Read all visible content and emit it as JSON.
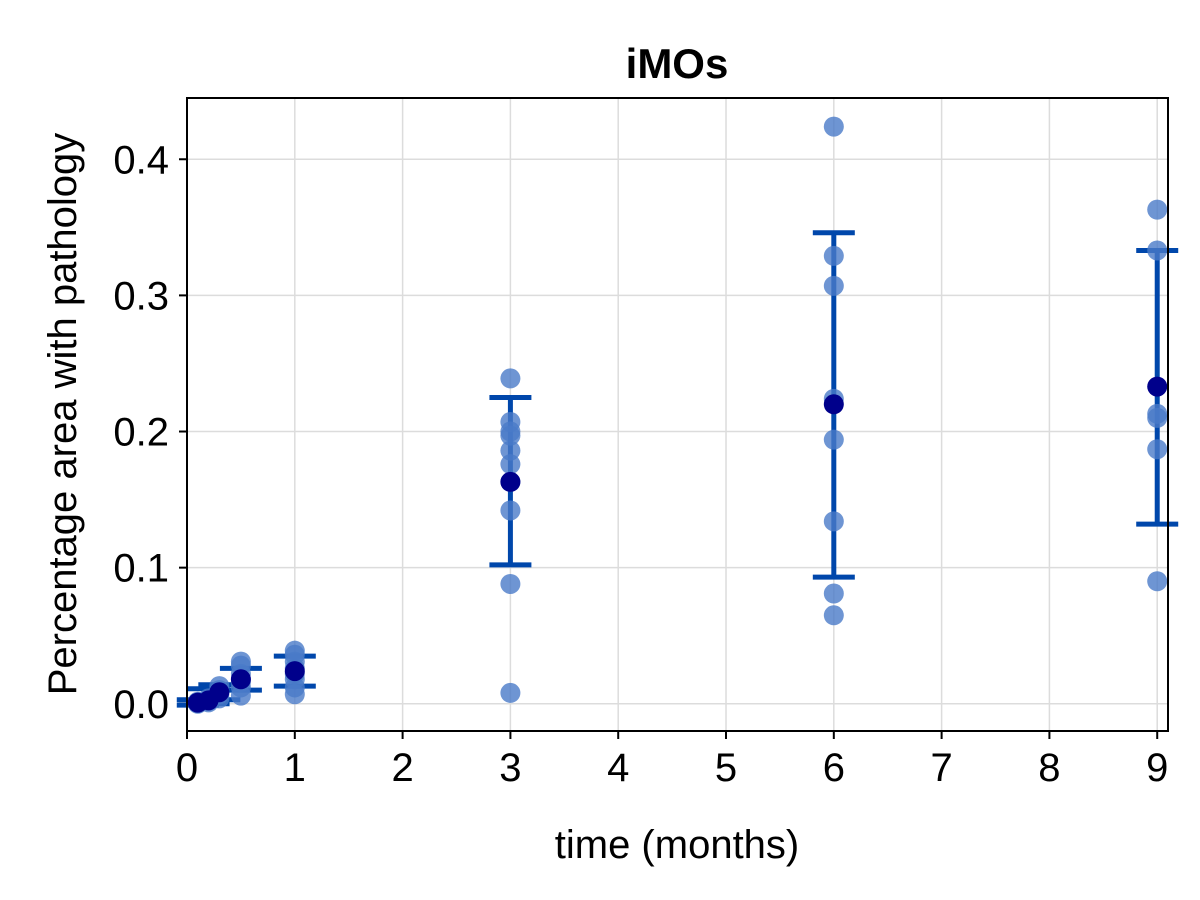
{
  "chart_data": {
    "type": "scatter",
    "title": "iMOs",
    "xlabel": "time (months)",
    "ylabel": "Percentage area with pathology",
    "xlim": [
      0,
      9.1
    ],
    "ylim": [
      -0.02,
      0.445
    ],
    "xticks": [
      0,
      1,
      2,
      3,
      4,
      5,
      6,
      7,
      8,
      9
    ],
    "yticks": [
      0.0,
      0.1,
      0.2,
      0.3,
      0.4
    ],
    "xtick_labels": [
      "0",
      "1",
      "2",
      "3",
      "4",
      "5",
      "6",
      "7",
      "8",
      "9"
    ],
    "ytick_labels": [
      "0.0",
      "0.1",
      "0.2",
      "0.3",
      "0.4"
    ],
    "grid": true,
    "colors": {
      "points": "#4A7BC8",
      "mean": "#00008B",
      "errorbar": "#0047AB"
    },
    "groups": [
      {
        "x": 0.1,
        "points": [
          0.0,
          0.0005,
          0.001,
          0.0015
        ],
        "mean": 0.0008,
        "error_low": -0.001,
        "error_high": 0.003
      },
      {
        "x": 0.2,
        "points": [
          0.001,
          0.002,
          0.003,
          0.004
        ],
        "mean": 0.0025,
        "error_low": 0.0,
        "error_high": 0.011
      },
      {
        "x": 0.3,
        "points": [
          0.004,
          0.007,
          0.01,
          0.013
        ],
        "mean": 0.0085,
        "error_low": 0.003,
        "error_high": 0.014
      },
      {
        "x": 0.5,
        "points": [
          0.006,
          0.012,
          0.016,
          0.018,
          0.022,
          0.028,
          0.031
        ],
        "mean": 0.018,
        "error_low": 0.01,
        "error_high": 0.026
      },
      {
        "x": 1.0,
        "points": [
          0.007,
          0.012,
          0.018,
          0.022,
          0.026,
          0.031,
          0.036,
          0.039
        ],
        "mean": 0.024,
        "error_low": 0.013,
        "error_high": 0.035
      },
      {
        "x": 3.0,
        "points": [
          0.008,
          0.088,
          0.142,
          0.163,
          0.176,
          0.186,
          0.197,
          0.2,
          0.207,
          0.239
        ],
        "mean": 0.163,
        "error_low": 0.102,
        "error_high": 0.225
      },
      {
        "x": 6.0,
        "points": [
          0.065,
          0.081,
          0.134,
          0.194,
          0.224,
          0.307,
          0.329,
          0.424
        ],
        "mean": 0.22,
        "error_low": 0.093,
        "error_high": 0.346
      },
      {
        "x": 9.0,
        "points": [
          0.09,
          0.187,
          0.21,
          0.213,
          0.333,
          0.363
        ],
        "mean": 0.233,
        "error_low": 0.132,
        "error_high": 0.333
      }
    ]
  }
}
